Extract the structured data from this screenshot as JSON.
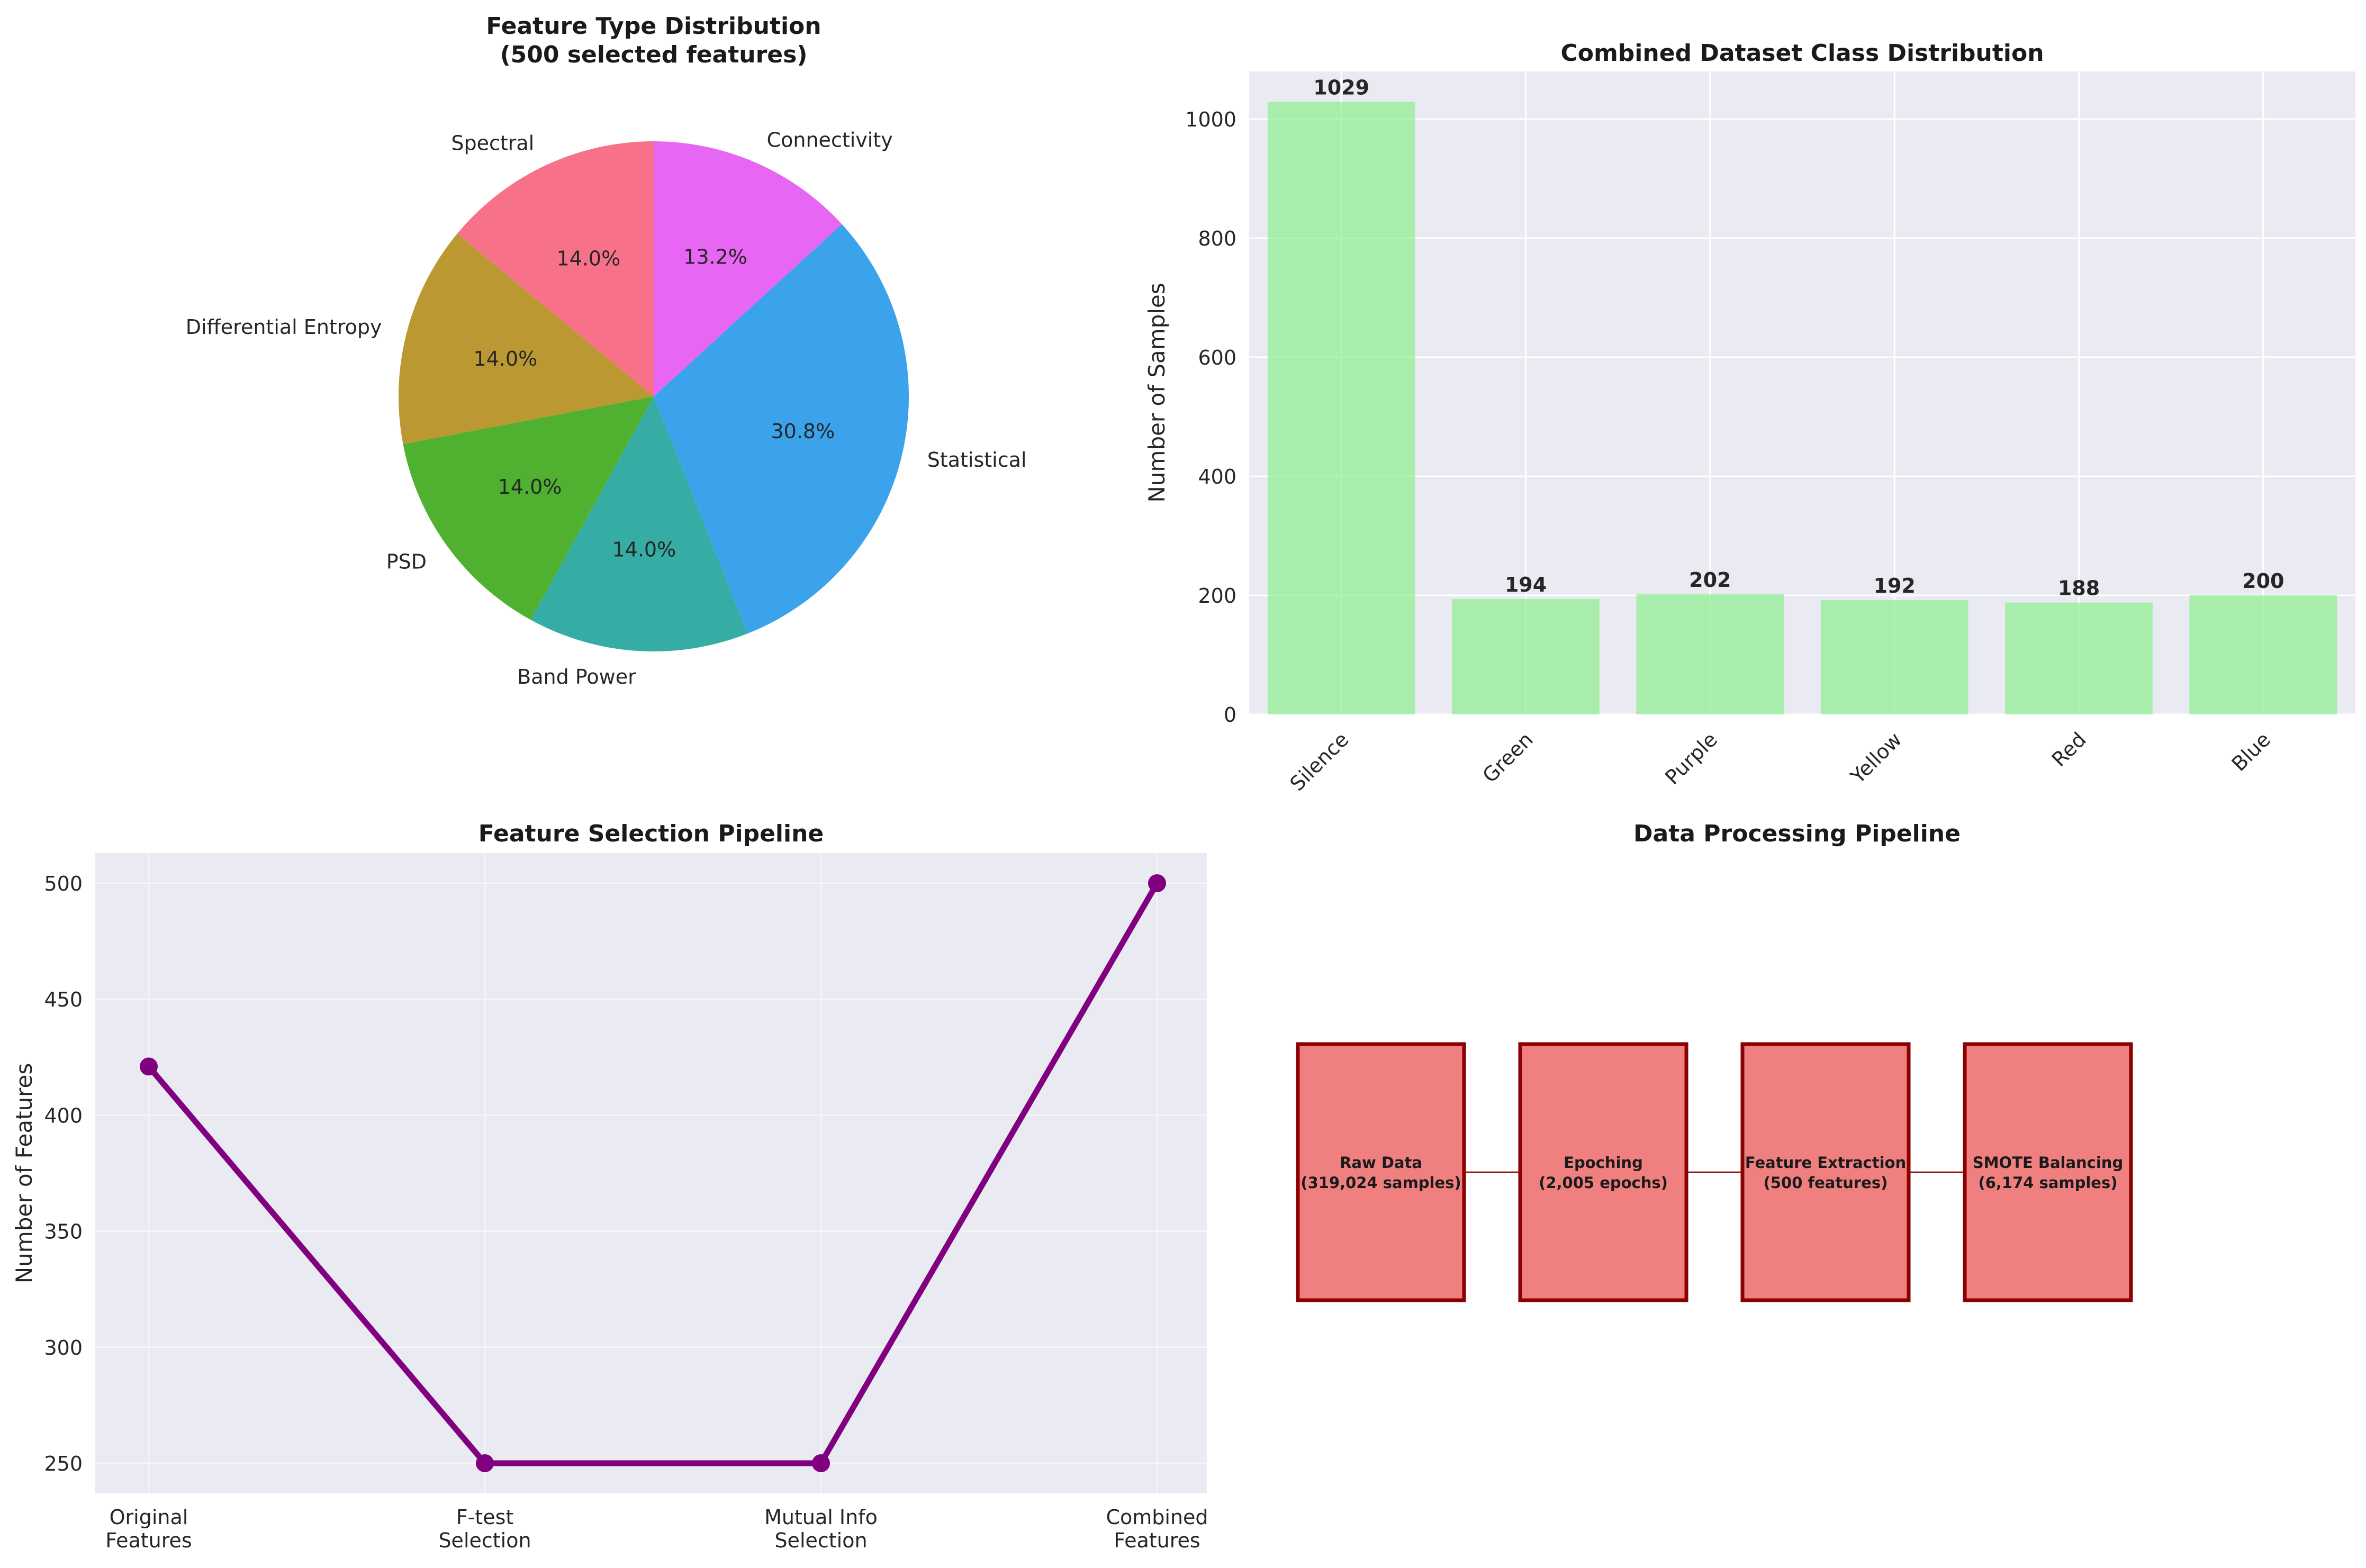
{
  "chart_data": [
    {
      "type": "pie",
      "title": "Feature Type Distribution\n(500 selected features)",
      "slices": [
        {
          "label": "Spectral",
          "value": 14.0,
          "pct_label": "14.0%",
          "color": "#f77189"
        },
        {
          "label": "Differential Entropy",
          "value": 14.0,
          "pct_label": "14.0%",
          "color": "#bb9832"
        },
        {
          "label": "PSD",
          "value": 14.0,
          "pct_label": "14.0%",
          "color": "#50b131"
        },
        {
          "label": "Band Power",
          "value": 14.0,
          "pct_label": "14.0%",
          "color": "#36ada4"
        },
        {
          "label": "Statistical",
          "value": 30.8,
          "pct_label": "30.8%",
          "color": "#3ba3ec"
        },
        {
          "label": "Connectivity",
          "value": 13.2,
          "pct_label": "13.2%",
          "color": "#e866f4"
        }
      ],
      "start_angle_deg": 90,
      "direction": "counterclockwise"
    },
    {
      "type": "bar",
      "title": "Combined Dataset Class Distribution",
      "categories": [
        "Silence",
        "Green",
        "Purple",
        "Yellow",
        "Red",
        "Blue"
      ],
      "values": [
        1029,
        194,
        202,
        192,
        188,
        200
      ],
      "value_labels": [
        "1029",
        "194",
        "202",
        "192",
        "188",
        "200"
      ],
      "ylabel": "Number of Samples",
      "ylim": [
        0,
        1080
      ],
      "yticks": [
        0,
        200,
        400,
        600,
        800,
        1000
      ],
      "ytick_labels": [
        "0",
        "200",
        "400",
        "600",
        "800",
        "1000"
      ],
      "bar_color": "#90ee90",
      "grid": true
    },
    {
      "type": "line",
      "title": "Feature Selection Pipeline",
      "categories": [
        "Original\nFeatures",
        "F-test\nSelection",
        "Mutual Info\nSelection",
        "Combined\nFeatures"
      ],
      "values": [
        421,
        250,
        250,
        500
      ],
      "ylabel": "Number of Features",
      "ylim": [
        237,
        513
      ],
      "yticks": [
        250,
        300,
        350,
        400,
        450,
        500
      ],
      "ytick_labels": [
        "250",
        "300",
        "350",
        "400",
        "450",
        "500"
      ],
      "line_color": "#800080",
      "grid": true
    },
    {
      "type": "diagram",
      "title": "Data Processing Pipeline",
      "boxes": [
        {
          "line1": "Raw Data",
          "line2": "(319,024 samples)"
        },
        {
          "line1": "Epoching",
          "line2": "(2,005 epochs)"
        },
        {
          "line1": "Feature Extraction",
          "line2": "(500 features)"
        },
        {
          "line1": "SMOTE Balancing",
          "line2": "(6,174 samples)"
        }
      ],
      "box_fill": "#f08080",
      "box_edge": "#8b0000"
    }
  ]
}
